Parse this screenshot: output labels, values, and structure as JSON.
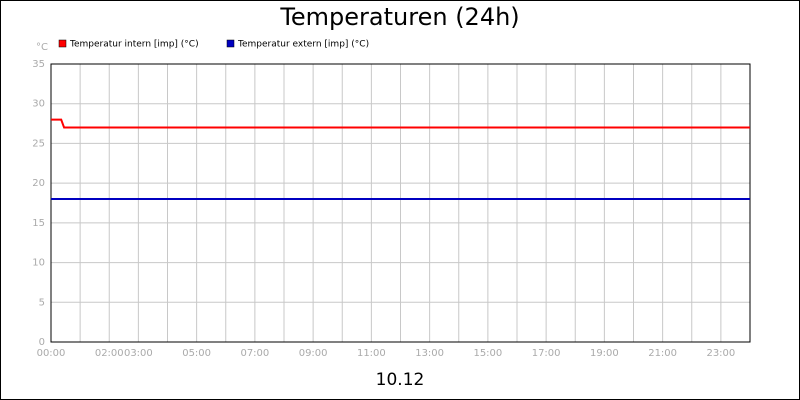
{
  "chart_data": {
    "type": "line",
    "title": "Temperaturen (24h)",
    "y_label": "°C",
    "x_label": "10.12",
    "series": [
      {
        "name": "Temperatur intern [imp] (°C)",
        "color": "#ff0000",
        "x": [
          0,
          0.35,
          0.45,
          24
        ],
        "values": [
          28,
          28,
          27,
          27
        ]
      },
      {
        "name": "Temperatur extern [imp] (°C)",
        "color": "#0000c0",
        "x": [
          0,
          24
        ],
        "values": [
          18,
          18
        ]
      }
    ],
    "xlim": [
      0,
      24
    ],
    "xticks": [
      {
        "value": 0,
        "label": "00:00"
      },
      {
        "value": 2,
        "label": "02:00"
      },
      {
        "value": 3,
        "label": "03:00"
      },
      {
        "value": 5,
        "label": "05:00"
      },
      {
        "value": 7,
        "label": "07:00"
      },
      {
        "value": 9,
        "label": "09:00"
      },
      {
        "value": 11,
        "label": "11:00"
      },
      {
        "value": 13,
        "label": "13:00"
      },
      {
        "value": 15,
        "label": "15:00"
      },
      {
        "value": 17,
        "label": "17:00"
      },
      {
        "value": 19,
        "label": "19:00"
      },
      {
        "value": 21,
        "label": "21:00"
      },
      {
        "value": 23,
        "label": "23:00"
      }
    ],
    "xminorticks": [
      1,
      4,
      6,
      8,
      10,
      12,
      14,
      16,
      18,
      20,
      22
    ],
    "ylim": [
      0,
      35
    ],
    "yticks": [
      0,
      5,
      10,
      15,
      20,
      25,
      30,
      35
    ],
    "grid": true
  }
}
